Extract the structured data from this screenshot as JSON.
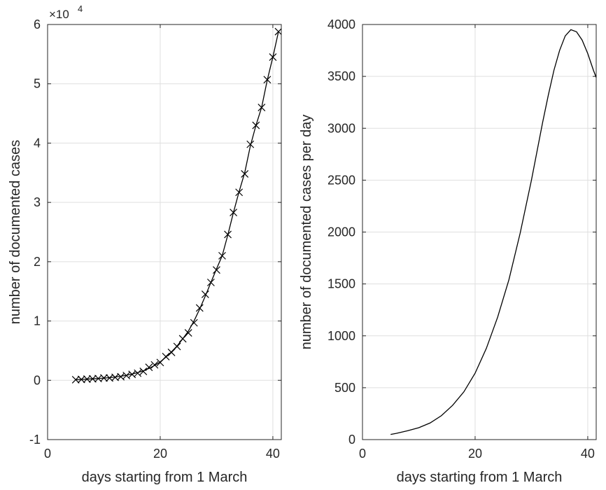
{
  "chart_data": [
    {
      "type": "line",
      "xlabel": "days starting from 1 March",
      "ylabel": "number of documented cases",
      "y_exponent_label": "×10",
      "y_exponent_power": "4",
      "xlim": [
        0,
        41.5
      ],
      "ylim": [
        -1,
        6
      ],
      "xticks": [
        0,
        20,
        40
      ],
      "yticks": [
        -1,
        0,
        1,
        2,
        3,
        4,
        5,
        6
      ],
      "grid": true,
      "series": [
        {
          "style": "line",
          "x": [
            5,
            5.5,
            6,
            7,
            8,
            9,
            10,
            11,
            12,
            13,
            14,
            15,
            16,
            17,
            18,
            19,
            20,
            21,
            22,
            23,
            24,
            25,
            26,
            27,
            28,
            29,
            30,
            31,
            32,
            33,
            34,
            35,
            36,
            37,
            38,
            39,
            40,
            41
          ],
          "y": [
            0.01,
            0.012,
            0.015,
            0.02,
            0.025,
            0.03,
            0.037,
            0.045,
            0.055,
            0.068,
            0.085,
            0.105,
            0.13,
            0.16,
            0.2,
            0.25,
            0.31,
            0.39,
            0.48,
            0.58,
            0.7,
            0.83,
            1.0,
            1.2,
            1.42,
            1.65,
            1.88,
            2.1,
            2.45,
            2.83,
            3.18,
            3.5,
            3.95,
            4.3,
            4.6,
            5.06,
            5.45,
            5.88
          ]
        },
        {
          "style": "markers",
          "marker": "x",
          "x": [
            5,
            6,
            7,
            8,
            9,
            10,
            11,
            12,
            13,
            14,
            15,
            16,
            17,
            18,
            19,
            20,
            21,
            22,
            23,
            24,
            25,
            26,
            27,
            28,
            29,
            30,
            31,
            32,
            33,
            34,
            35,
            36,
            37,
            38,
            39,
            40,
            41
          ],
          "y": [
            0.01,
            0.015,
            0.02,
            0.025,
            0.03,
            0.04,
            0.04,
            0.05,
            0.06,
            0.08,
            0.1,
            0.12,
            0.15,
            0.22,
            0.26,
            0.3,
            0.4,
            0.47,
            0.57,
            0.7,
            0.8,
            0.97,
            1.22,
            1.45,
            1.65,
            1.86,
            2.1,
            2.46,
            2.83,
            3.17,
            3.48,
            3.98,
            4.3,
            4.6,
            5.07,
            5.45,
            5.88
          ]
        }
      ]
    },
    {
      "type": "line",
      "xlabel": "days starting from 1 March",
      "ylabel": "number of documented cases per day",
      "xlim": [
        0,
        41.5
      ],
      "ylim": [
        0,
        4000
      ],
      "xticks": [
        0,
        20,
        40
      ],
      "yticks": [
        0,
        500,
        1000,
        1500,
        2000,
        2500,
        3000,
        3500,
        4000
      ],
      "grid": true,
      "series": [
        {
          "style": "line",
          "x": [
            5,
            6,
            8,
            10,
            12,
            14,
            16,
            18,
            20,
            22,
            24,
            26,
            28,
            30,
            31,
            32,
            33,
            34,
            35,
            36,
            37,
            38,
            39,
            40,
            41,
            41.5
          ],
          "y": [
            50,
            60,
            85,
            115,
            160,
            230,
            330,
            460,
            640,
            880,
            1180,
            1540,
            1990,
            2500,
            2780,
            3060,
            3320,
            3560,
            3750,
            3890,
            3950,
            3930,
            3850,
            3720,
            3560,
            3490
          ]
        }
      ]
    }
  ]
}
